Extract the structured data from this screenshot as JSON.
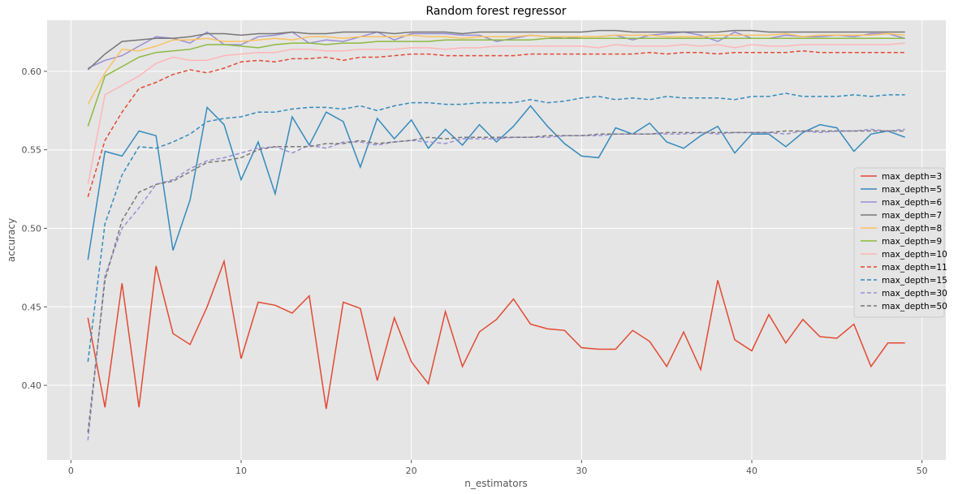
{
  "chart_data": {
    "type": "line",
    "title": "Random forest regressor",
    "xlabel": "n_estimators",
    "ylabel": "accuracy",
    "xlim": [
      -1.4,
      51.4
    ],
    "ylim": [
      0.3525,
      0.6325
    ],
    "xticks": [
      0,
      10,
      20,
      30,
      40,
      50
    ],
    "yticks": [
      0.4,
      0.45,
      0.5,
      0.55,
      0.6
    ],
    "grid": true,
    "legend_position": "right",
    "x": [
      1,
      2,
      3,
      4,
      5,
      6,
      7,
      8,
      9,
      10,
      11,
      12,
      13,
      14,
      15,
      16,
      17,
      18,
      19,
      20,
      21,
      22,
      23,
      24,
      25,
      26,
      27,
      28,
      29,
      30,
      31,
      32,
      33,
      34,
      35,
      36,
      37,
      38,
      39,
      40,
      41,
      42,
      43,
      44,
      45,
      46,
      47,
      48,
      49
    ],
    "series": [
      {
        "name": "max_depth=3",
        "color": "#E24A33",
        "dash": "solid",
        "values": [
          0.443,
          0.386,
          0.465,
          0.386,
          0.476,
          0.433,
          0.426,
          0.45,
          0.479,
          0.417,
          0.453,
          0.451,
          0.446,
          0.457,
          0.385,
          0.453,
          0.449,
          0.403,
          0.443,
          0.415,
          0.401,
          0.447,
          0.412,
          0.434,
          0.442,
          0.455,
          0.439,
          0.436,
          0.435,
          0.424,
          0.423,
          0.423,
          0.435,
          0.428,
          0.412,
          0.434,
          0.41,
          0.467,
          0.429,
          0.422,
          0.445,
          0.427,
          0.442,
          0.431,
          0.43,
          0.439,
          0.412,
          0.427,
          0.427
        ]
      },
      {
        "name": "max_depth=5",
        "color": "#348ABD",
        "dash": "solid",
        "values": [
          0.48,
          0.549,
          0.546,
          0.562,
          0.559,
          0.486,
          0.518,
          0.577,
          0.566,
          0.531,
          0.555,
          0.522,
          0.571,
          0.553,
          0.574,
          0.568,
          0.539,
          0.57,
          0.557,
          0.569,
          0.551,
          0.563,
          0.553,
          0.566,
          0.555,
          0.565,
          0.578,
          0.565,
          0.554,
          0.546,
          0.545,
          0.564,
          0.56,
          0.567,
          0.555,
          0.551,
          0.559,
          0.565,
          0.548,
          0.56,
          0.56,
          0.552,
          0.561,
          0.566,
          0.564,
          0.549,
          0.56,
          0.562,
          0.558
        ]
      },
      {
        "name": "max_depth=6",
        "color": "#988ED5",
        "dash": "solid",
        "values": [
          0.602,
          0.607,
          0.61,
          0.616,
          0.622,
          0.621,
          0.618,
          0.625,
          0.617,
          0.617,
          0.622,
          0.623,
          0.625,
          0.618,
          0.62,
          0.619,
          0.622,
          0.625,
          0.62,
          0.624,
          0.624,
          0.624,
          0.623,
          0.623,
          0.619,
          0.621,
          0.623,
          0.622,
          0.621,
          0.622,
          0.622,
          0.623,
          0.62,
          0.623,
          0.624,
          0.625,
          0.623,
          0.619,
          0.625,
          0.621,
          0.621,
          0.623,
          0.622,
          0.622,
          0.623,
          0.622,
          0.624,
          0.624,
          0.621
        ]
      },
      {
        "name": "max_depth=7",
        "color": "#777777",
        "dash": "solid",
        "values": [
          0.601,
          0.611,
          0.619,
          0.62,
          0.621,
          0.621,
          0.622,
          0.624,
          0.624,
          0.623,
          0.624,
          0.624,
          0.625,
          0.624,
          0.624,
          0.625,
          0.625,
          0.625,
          0.624,
          0.625,
          0.625,
          0.625,
          0.624,
          0.625,
          0.625,
          0.625,
          0.625,
          0.625,
          0.625,
          0.625,
          0.626,
          0.626,
          0.625,
          0.625,
          0.625,
          0.625,
          0.625,
          0.625,
          0.626,
          0.626,
          0.625,
          0.625,
          0.625,
          0.625,
          0.625,
          0.625,
          0.625,
          0.625,
          0.625
        ]
      },
      {
        "name": "max_depth=8",
        "color": "#FBC15E",
        "dash": "solid",
        "values": [
          0.579,
          0.599,
          0.614,
          0.613,
          0.616,
          0.62,
          0.62,
          0.621,
          0.619,
          0.619,
          0.62,
          0.621,
          0.62,
          0.622,
          0.622,
          0.621,
          0.622,
          0.622,
          0.622,
          0.623,
          0.622,
          0.622,
          0.621,
          0.622,
          0.622,
          0.622,
          0.623,
          0.622,
          0.622,
          0.622,
          0.622,
          0.623,
          0.623,
          0.623,
          0.622,
          0.622,
          0.622,
          0.623,
          0.623,
          0.623,
          0.623,
          0.624,
          0.622,
          0.623,
          0.623,
          0.623,
          0.623,
          0.624,
          0.623
        ]
      },
      {
        "name": "max_depth=9",
        "color": "#8EBA42",
        "dash": "solid",
        "values": [
          0.565,
          0.597,
          0.603,
          0.609,
          0.612,
          0.613,
          0.614,
          0.617,
          0.617,
          0.616,
          0.615,
          0.617,
          0.618,
          0.618,
          0.617,
          0.618,
          0.618,
          0.619,
          0.619,
          0.619,
          0.619,
          0.62,
          0.62,
          0.62,
          0.62,
          0.62,
          0.62,
          0.621,
          0.621,
          0.621,
          0.621,
          0.621,
          0.621,
          0.621,
          0.621,
          0.621,
          0.621,
          0.621,
          0.621,
          0.621,
          0.621,
          0.621,
          0.621,
          0.621,
          0.621,
          0.621,
          0.621,
          0.621,
          0.621
        ]
      },
      {
        "name": "max_depth=10",
        "color": "#FFB5B8",
        "dash": "solid",
        "values": [
          0.528,
          0.585,
          0.591,
          0.597,
          0.605,
          0.609,
          0.607,
          0.607,
          0.61,
          0.611,
          0.612,
          0.612,
          0.614,
          0.614,
          0.613,
          0.613,
          0.614,
          0.614,
          0.614,
          0.615,
          0.615,
          0.614,
          0.615,
          0.615,
          0.616,
          0.616,
          0.616,
          0.616,
          0.616,
          0.616,
          0.615,
          0.617,
          0.616,
          0.616,
          0.616,
          0.617,
          0.616,
          0.617,
          0.615,
          0.617,
          0.616,
          0.616,
          0.617,
          0.617,
          0.617,
          0.617,
          0.617,
          0.617,
          0.618
        ]
      },
      {
        "name": "max_depth=11",
        "color": "#E24A33",
        "dash": "dashed",
        "values": [
          0.52,
          0.556,
          0.574,
          0.589,
          0.593,
          0.598,
          0.601,
          0.599,
          0.602,
          0.606,
          0.607,
          0.606,
          0.608,
          0.608,
          0.609,
          0.607,
          0.609,
          0.609,
          0.61,
          0.611,
          0.611,
          0.61,
          0.61,
          0.61,
          0.61,
          0.61,
          0.611,
          0.611,
          0.611,
          0.611,
          0.611,
          0.611,
          0.611,
          0.612,
          0.611,
          0.612,
          0.612,
          0.611,
          0.612,
          0.612,
          0.612,
          0.612,
          0.613,
          0.612,
          0.612,
          0.612,
          0.612,
          0.612,
          0.612
        ]
      },
      {
        "name": "max_depth=15",
        "color": "#348ABD",
        "dash": "dashed",
        "values": [
          0.415,
          0.503,
          0.534,
          0.552,
          0.551,
          0.555,
          0.56,
          0.568,
          0.57,
          0.571,
          0.574,
          0.574,
          0.576,
          0.577,
          0.577,
          0.576,
          0.578,
          0.575,
          0.578,
          0.58,
          0.58,
          0.579,
          0.579,
          0.58,
          0.58,
          0.58,
          0.582,
          0.58,
          0.581,
          0.583,
          0.584,
          0.582,
          0.583,
          0.582,
          0.584,
          0.583,
          0.583,
          0.583,
          0.582,
          0.584,
          0.584,
          0.586,
          0.584,
          0.584,
          0.584,
          0.585,
          0.584,
          0.585,
          0.585
        ]
      },
      {
        "name": "max_depth=30",
        "color": "#988ED5",
        "dash": "dashed",
        "values": [
          0.365,
          0.47,
          0.5,
          0.513,
          0.528,
          0.531,
          0.538,
          0.543,
          0.545,
          0.548,
          0.551,
          0.552,
          0.548,
          0.553,
          0.551,
          0.555,
          0.555,
          0.553,
          0.555,
          0.556,
          0.555,
          0.554,
          0.557,
          0.557,
          0.557,
          0.558,
          0.558,
          0.558,
          0.559,
          0.559,
          0.559,
          0.56,
          0.56,
          0.56,
          0.56,
          0.56,
          0.561,
          0.56,
          0.561,
          0.561,
          0.561,
          0.56,
          0.562,
          0.561,
          0.562,
          0.562,
          0.563,
          0.562,
          0.563
        ]
      },
      {
        "name": "max_depth=50",
        "color": "#777777",
        "dash": "dashed",
        "values": [
          0.37,
          0.467,
          0.505,
          0.523,
          0.528,
          0.53,
          0.536,
          0.542,
          0.543,
          0.545,
          0.55,
          0.552,
          0.552,
          0.552,
          0.554,
          0.554,
          0.556,
          0.554,
          0.555,
          0.556,
          0.558,
          0.557,
          0.558,
          0.558,
          0.558,
          0.558,
          0.558,
          0.559,
          0.559,
          0.559,
          0.56,
          0.56,
          0.56,
          0.56,
          0.561,
          0.561,
          0.561,
          0.561,
          0.561,
          0.561,
          0.561,
          0.562,
          0.562,
          0.562,
          0.562,
          0.562,
          0.562,
          0.562,
          0.562
        ]
      }
    ]
  }
}
